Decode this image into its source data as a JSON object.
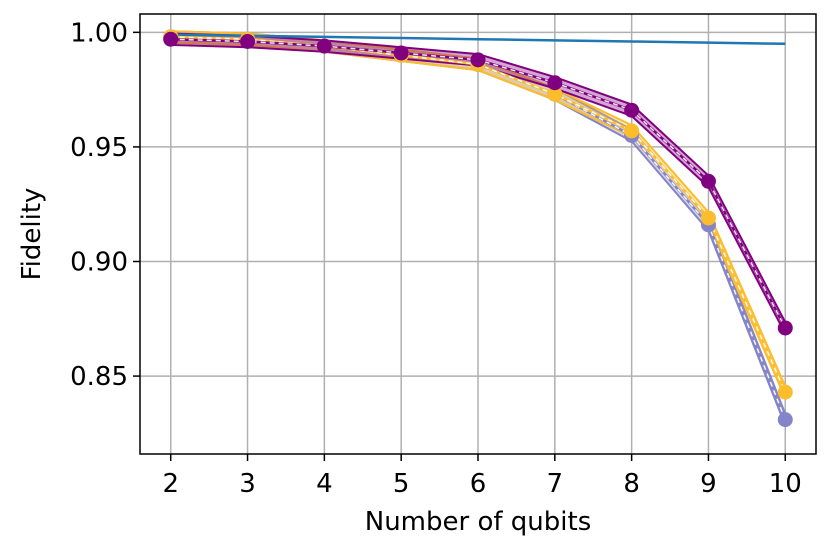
{
  "chart_data": {
    "type": "line",
    "title": "",
    "xlabel": "Number of qubits",
    "ylabel": "Fidelity",
    "x": [
      2,
      3,
      4,
      5,
      6,
      7,
      8,
      9,
      10
    ],
    "xlim": [
      1.6,
      10.4
    ],
    "ylim": [
      0.816,
      1.008
    ],
    "xticks": [
      "2",
      "3",
      "4",
      "5",
      "6",
      "7",
      "8",
      "9",
      "10"
    ],
    "yticks": [
      {
        "value": 0.85,
        "label": "0.85"
      },
      {
        "value": 0.9,
        "label": "0.90"
      },
      {
        "value": 0.95,
        "label": "0.95"
      },
      {
        "value": 1.0,
        "label": "1.00"
      }
    ],
    "grid": true,
    "series": [
      {
        "color": "#1f77b4",
        "marker": false,
        "values": [
          0.999,
          0.9985,
          0.998,
          0.9975,
          0.997,
          0.9965,
          0.996,
          0.9955,
          0.995
        ]
      },
      {
        "color": "#8484c8",
        "marker": true,
        "values": [
          0.998,
          0.997,
          0.994,
          0.99,
          0.986,
          0.973,
          0.955,
          0.916,
          0.831
        ],
        "band": 0.0025
      },
      {
        "color": "#fbbd2b",
        "marker": true,
        "values": [
          0.998,
          0.997,
          0.994,
          0.99,
          0.986,
          0.973,
          0.957,
          0.919,
          0.843
        ],
        "band": 0.0025
      },
      {
        "color": "#800080",
        "marker": true,
        "values": [
          0.997,
          0.996,
          0.994,
          0.991,
          0.988,
          0.978,
          0.966,
          0.935,
          0.871
        ],
        "band": 0.0025
      }
    ]
  }
}
